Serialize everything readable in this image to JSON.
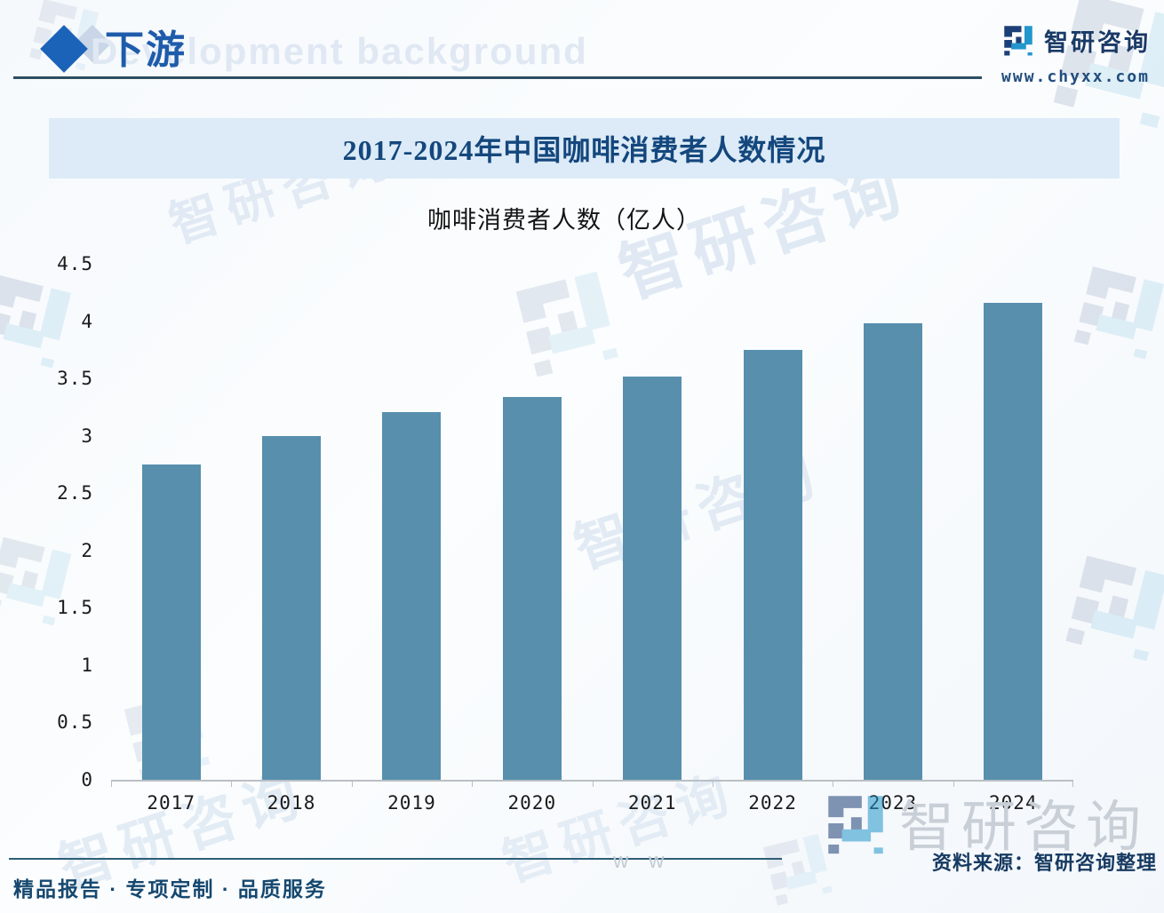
{
  "header": {
    "section_title": "下游",
    "watermark_text": "Development background",
    "brand": {
      "name": "智研咨询",
      "url": "www.chyxx.com"
    }
  },
  "banner": {
    "title": "2017-2024年中国咖啡消费者人数情况"
  },
  "chart_data": {
    "type": "bar",
    "title": "咖啡消费者人数（亿人）",
    "categories": [
      "2017",
      "2018",
      "2019",
      "2020",
      "2021",
      "2022",
      "2023",
      "2024"
    ],
    "values": [
      2.75,
      3.0,
      3.21,
      3.34,
      3.52,
      3.75,
      3.98,
      4.16
    ],
    "xlabel": "",
    "ylabel": "咖啡消费者人数（亿人）",
    "ylim": [
      0,
      4.5
    ],
    "yticks": [
      0,
      0.5,
      1,
      1.5,
      2,
      2.5,
      3,
      3.5,
      4,
      4.5
    ],
    "grid": false,
    "legend": false,
    "bar_color": "#578fad"
  },
  "footer": {
    "tagline": "精品报告 · 专项定制 · 品质服务",
    "source": "资料来源：智研咨询整理"
  },
  "watermarks": {
    "brand_text": "智研咨询",
    "url_fragment": "w w"
  }
}
